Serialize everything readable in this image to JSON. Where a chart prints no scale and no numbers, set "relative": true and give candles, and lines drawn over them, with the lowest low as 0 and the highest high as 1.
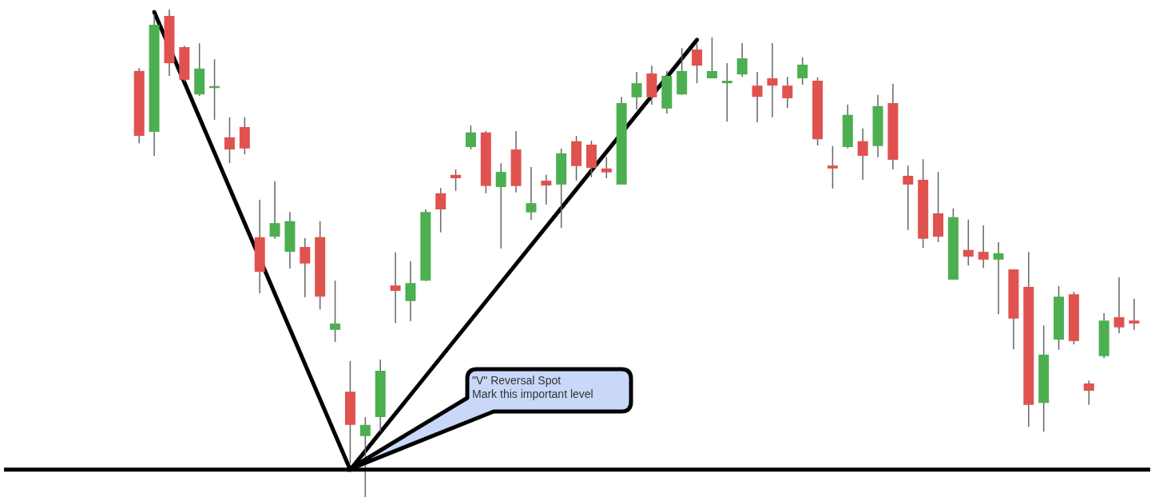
{
  "chart_data": {
    "type": "candlestick",
    "relative": true,
    "categories": [
      null,
      null,
      null,
      null,
      null,
      null,
      null,
      null,
      null,
      null,
      null,
      null,
      null,
      null,
      null,
      null,
      null,
      null,
      null,
      null,
      null,
      null,
      null,
      null,
      null,
      null,
      null,
      null,
      null,
      null,
      null,
      null,
      null,
      null,
      null,
      null,
      null,
      null,
      null,
      null,
      null,
      null,
      null,
      null,
      null,
      null,
      null,
      null,
      null,
      null,
      null,
      null,
      null,
      null,
      null,
      null,
      null,
      null,
      null,
      null,
      null,
      null,
      null,
      null,
      null,
      null,
      null
    ],
    "ohlc": [
      [
        0.874,
        0.88,
        0.726,
        0.741
      ],
      [
        0.749,
        0.99,
        0.7,
        0.969
      ],
      [
        0.987,
        1,
        0.864,
        0.89
      ],
      [
        0.923,
        0.926,
        0.852,
        0.856
      ],
      [
        0.826,
        0.931,
        0.823,
        0.879
      ],
      [
        0.839,
        0.898,
        0.774,
        0.843
      ],
      [
        0.738,
        0.779,
        0.685,
        0.713
      ],
      [
        0.759,
        0.779,
        0.703,
        0.715
      ],
      [
        0.533,
        0.61,
        0.418,
        0.462
      ],
      [
        0.534,
        0.648,
        0.53,
        0.562
      ],
      [
        0.503,
        0.585,
        0.469,
        0.566
      ],
      [
        0.513,
        0.531,
        0.41,
        0.479
      ],
      [
        0.533,
        0.566,
        0.385,
        0.411
      ],
      [
        0.343,
        0.444,
        0.318,
        0.356
      ],
      [
        0.216,
        0.279,
        0.069,
        0.148
      ],
      [
        0.125,
        0.164,
        0,
        0.148
      ],
      [
        0.164,
        0.282,
        0.134,
        0.259
      ],
      [
        0.434,
        0.502,
        0.357,
        0.423
      ],
      [
        0.402,
        0.484,
        0.361,
        0.439
      ],
      [
        0.444,
        0.59,
        0.443,
        0.585
      ],
      [
        0.623,
        0.634,
        0.543,
        0.59
      ],
      [
        0.661,
        0.672,
        0.628,
        0.654
      ],
      [
        0.718,
        0.762,
        0.713,
        0.748
      ],
      [
        0.748,
        0.751,
        0.623,
        0.638
      ],
      [
        0.636,
        0.685,
        0.51,
        0.667
      ],
      [
        0.713,
        0.751,
        0.625,
        0.638
      ],
      [
        0.584,
        0.677,
        0.569,
        0.603
      ],
      [
        0.649,
        0.661,
        0.6,
        0.639
      ],
      [
        0.641,
        0.715,
        0.552,
        0.705
      ],
      [
        0.73,
        0.741,
        0.649,
        0.679
      ],
      [
        0.723,
        0.731,
        0.656,
        0.675
      ],
      [
        0.674,
        0.698,
        0.654,
        0.666
      ],
      [
        0.641,
        0.821,
        0.641,
        0.808
      ],
      [
        0.82,
        0.872,
        0.795,
        0.849
      ],
      [
        0.869,
        0.885,
        0.805,
        0.82
      ],
      [
        0.797,
        0.874,
        0.787,
        0.864
      ],
      [
        0.826,
        0.921,
        0.825,
        0.874
      ],
      [
        0.918,
        0.93,
        0.849,
        0.885
      ],
      [
        0.859,
        0.943,
        0.859,
        0.874
      ],
      [
        0.849,
        0.89,
        0.77,
        0.854
      ],
      [
        0.867,
        0.931,
        0.862,
        0.9
      ],
      [
        0.844,
        0.872,
        0.769,
        0.821
      ],
      [
        0.859,
        0.931,
        0.779,
        0.844
      ],
      [
        0.844,
        0.862,
        0.798,
        0.818
      ],
      [
        0.859,
        0.902,
        0.846,
        0.887
      ],
      [
        0.854,
        0.861,
        0.721,
        0.734
      ],
      [
        0.68,
        0.72,
        0.633,
        0.674
      ],
      [
        0.718,
        0.805,
        0.715,
        0.784
      ],
      [
        0.73,
        0.756,
        0.651,
        0.7
      ],
      [
        0.72,
        0.825,
        0.697,
        0.802
      ],
      [
        0.808,
        0.848,
        0.672,
        0.692
      ],
      [
        0.659,
        0.68,
        0.548,
        0.641
      ],
      [
        0.651,
        0.693,
        0.511,
        0.53
      ],
      [
        0.582,
        0.667,
        0.523,
        0.534
      ],
      [
        0.446,
        0.592,
        0.446,
        0.574
      ],
      [
        0.507,
        0.569,
        0.475,
        0.493
      ],
      [
        0.503,
        0.557,
        0.47,
        0.487
      ],
      [
        0.487,
        0.523,
        0.375,
        0.5
      ],
      [
        0.467,
        0.467,
        0.303,
        0.366
      ],
      [
        0.431,
        0.503,
        0.144,
        0.189
      ],
      [
        0.193,
        0.352,
        0.134,
        0.292
      ],
      [
        0.323,
        0.433,
        0.302,
        0.411
      ],
      [
        0.416,
        0.421,
        0.313,
        0.32
      ],
      [
        0.233,
        0.239,
        0.189,
        0.218
      ],
      [
        0.289,
        0.377,
        0.285,
        0.362
      ],
      [
        0.369,
        0.451,
        0.336,
        0.348
      ],
      [
        0.362,
        0.407,
        0.343,
        0.356
      ]
    ],
    "colors": [
      "#e0524f",
      "#4caf50",
      "#e0524f",
      "#e0524f",
      "#4caf50",
      "#4caf50",
      "#e0524f",
      "#e0524f",
      "#e0524f",
      "#4caf50",
      "#4caf50",
      "#e0524f",
      "#e0524f",
      "#4caf50",
      "#e0524f",
      "#4caf50",
      "#4caf50",
      "#e0524f",
      "#4caf50",
      "#4caf50",
      "#e0524f",
      "#e0524f",
      "#4caf50",
      "#e0524f",
      "#4caf50",
      "#e0524f",
      "#4caf50",
      "#e0524f",
      "#4caf50",
      "#e0524f",
      "#e0524f",
      "#e0524f",
      "#4caf50",
      "#4caf50",
      "#e0524f",
      "#4caf50",
      "#4caf50",
      "#e0524f",
      "#4caf50",
      "#4caf50",
      "#4caf50",
      "#e0524f",
      "#e0524f",
      "#e0524f",
      "#4caf50",
      "#e0524f",
      "#e0524f",
      "#4caf50",
      "#e0524f",
      "#4caf50",
      "#e0524f",
      "#e0524f",
      "#e0524f",
      "#e0524f",
      "#4caf50",
      "#e0524f",
      "#e0524f",
      "#4caf50",
      "#e0524f",
      "#e0524f",
      "#4caf50",
      "#4caf50",
      "#e0524f",
      "#e0524f",
      "#4caf50",
      "#e0524f",
      "#e0524f"
    ],
    "series": [
      {
        "type": "line",
        "values": [
          null,
          0.995,
          null,
          null,
          null,
          null,
          null,
          null,
          null,
          null,
          null,
          null,
          null,
          null,
          0.056,
          null,
          null,
          null,
          null,
          null,
          null,
          null,
          null,
          null,
          null,
          null,
          null,
          null,
          null,
          null,
          null,
          null,
          null,
          null,
          null,
          null,
          null,
          0.938,
          null,
          null,
          null,
          null,
          null,
          null,
          null,
          null,
          null,
          null,
          null,
          null,
          null,
          null,
          null,
          null,
          null,
          null,
          null,
          null,
          null,
          null,
          null,
          null,
          null,
          null,
          null,
          null,
          null
        ],
        "color": "#000000"
      }
    ],
    "ref_lines": [
      {
        "axis": "y",
        "value": 0.056,
        "color": "#000000"
      }
    ],
    "annotations": [
      "\"V\" Reversal Spot\nMark this important level"
    ]
  }
}
